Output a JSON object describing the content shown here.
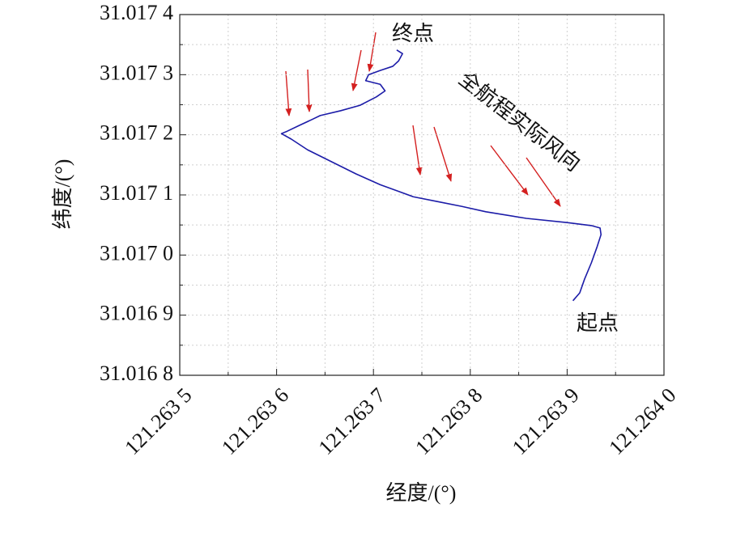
{
  "chart_data": {
    "type": "line",
    "xlabel": "经度/(°)",
    "ylabel": "纬度/(°)",
    "x": [
      121.263906,
      121.263913,
      121.263918,
      121.263925,
      121.263931,
      121.263935,
      121.263934,
      121.263925,
      121.2639,
      121.263858,
      121.263816,
      121.263791,
      121.263766,
      121.263741,
      121.263724,
      121.263707,
      121.263682,
      121.263657,
      121.263632,
      121.263615,
      121.263605,
      121.263611,
      121.263624,
      121.263636,
      121.263645,
      121.263666,
      121.263686,
      121.263703,
      121.263712,
      121.263707,
      121.263692,
      121.263695,
      121.263707,
      121.26372,
      121.263726,
      121.26373,
      121.263724
    ],
    "series": [
      {
        "color": "#1c1ca8",
        "values": [
          31.016924,
          31.016937,
          31.01696,
          31.016987,
          31.017014,
          31.017034,
          31.017045,
          31.017049,
          31.017054,
          31.017061,
          31.017072,
          31.017081,
          31.017089,
          31.017097,
          31.017107,
          31.017117,
          31.017135,
          31.017155,
          31.017175,
          31.017193,
          31.017202,
          31.017206,
          31.017216,
          31.017225,
          31.017232,
          31.01724,
          31.017249,
          31.017263,
          31.017273,
          31.017284,
          31.01729,
          31.0173,
          31.017307,
          31.017314,
          31.017323,
          31.017335,
          31.017341
        ]
      }
    ],
    "xlim": [
      121.2635,
      121.264
    ],
    "ylim": [
      31.0168,
      31.0174
    ],
    "xticks": [
      {
        "value": 121.2635,
        "label": "121.263 5"
      },
      {
        "value": 121.2636,
        "label": "121.263 6"
      },
      {
        "value": 121.2637,
        "label": "121.263 7"
      },
      {
        "value": 121.2638,
        "label": "121.263 8"
      },
      {
        "value": 121.2639,
        "label": "121.263 9"
      },
      {
        "value": 121.264,
        "label": "121.264 0"
      }
    ],
    "yticks": [
      {
        "value": 31.0168,
        "label": "31.016 8"
      },
      {
        "value": 31.0169,
        "label": "31.016 9"
      },
      {
        "value": 31.017,
        "label": "31.017 0"
      },
      {
        "value": 31.0171,
        "label": "31.017 1"
      },
      {
        "value": 31.0172,
        "label": "31.017 2"
      },
      {
        "value": 31.0173,
        "label": "31.017 3"
      },
      {
        "value": 31.0174,
        "label": "31.017 4"
      }
    ],
    "xminorticks": [
      121.26355,
      121.26365,
      121.26375,
      121.26385,
      121.26395
    ],
    "yminorticks": [
      31.01685,
      31.01695,
      31.01705,
      31.01715,
      31.01725,
      31.01735
    ],
    "grid": true,
    "annotations": [
      "终点",
      "起点",
      "全航程实际风向"
    ]
  }
}
